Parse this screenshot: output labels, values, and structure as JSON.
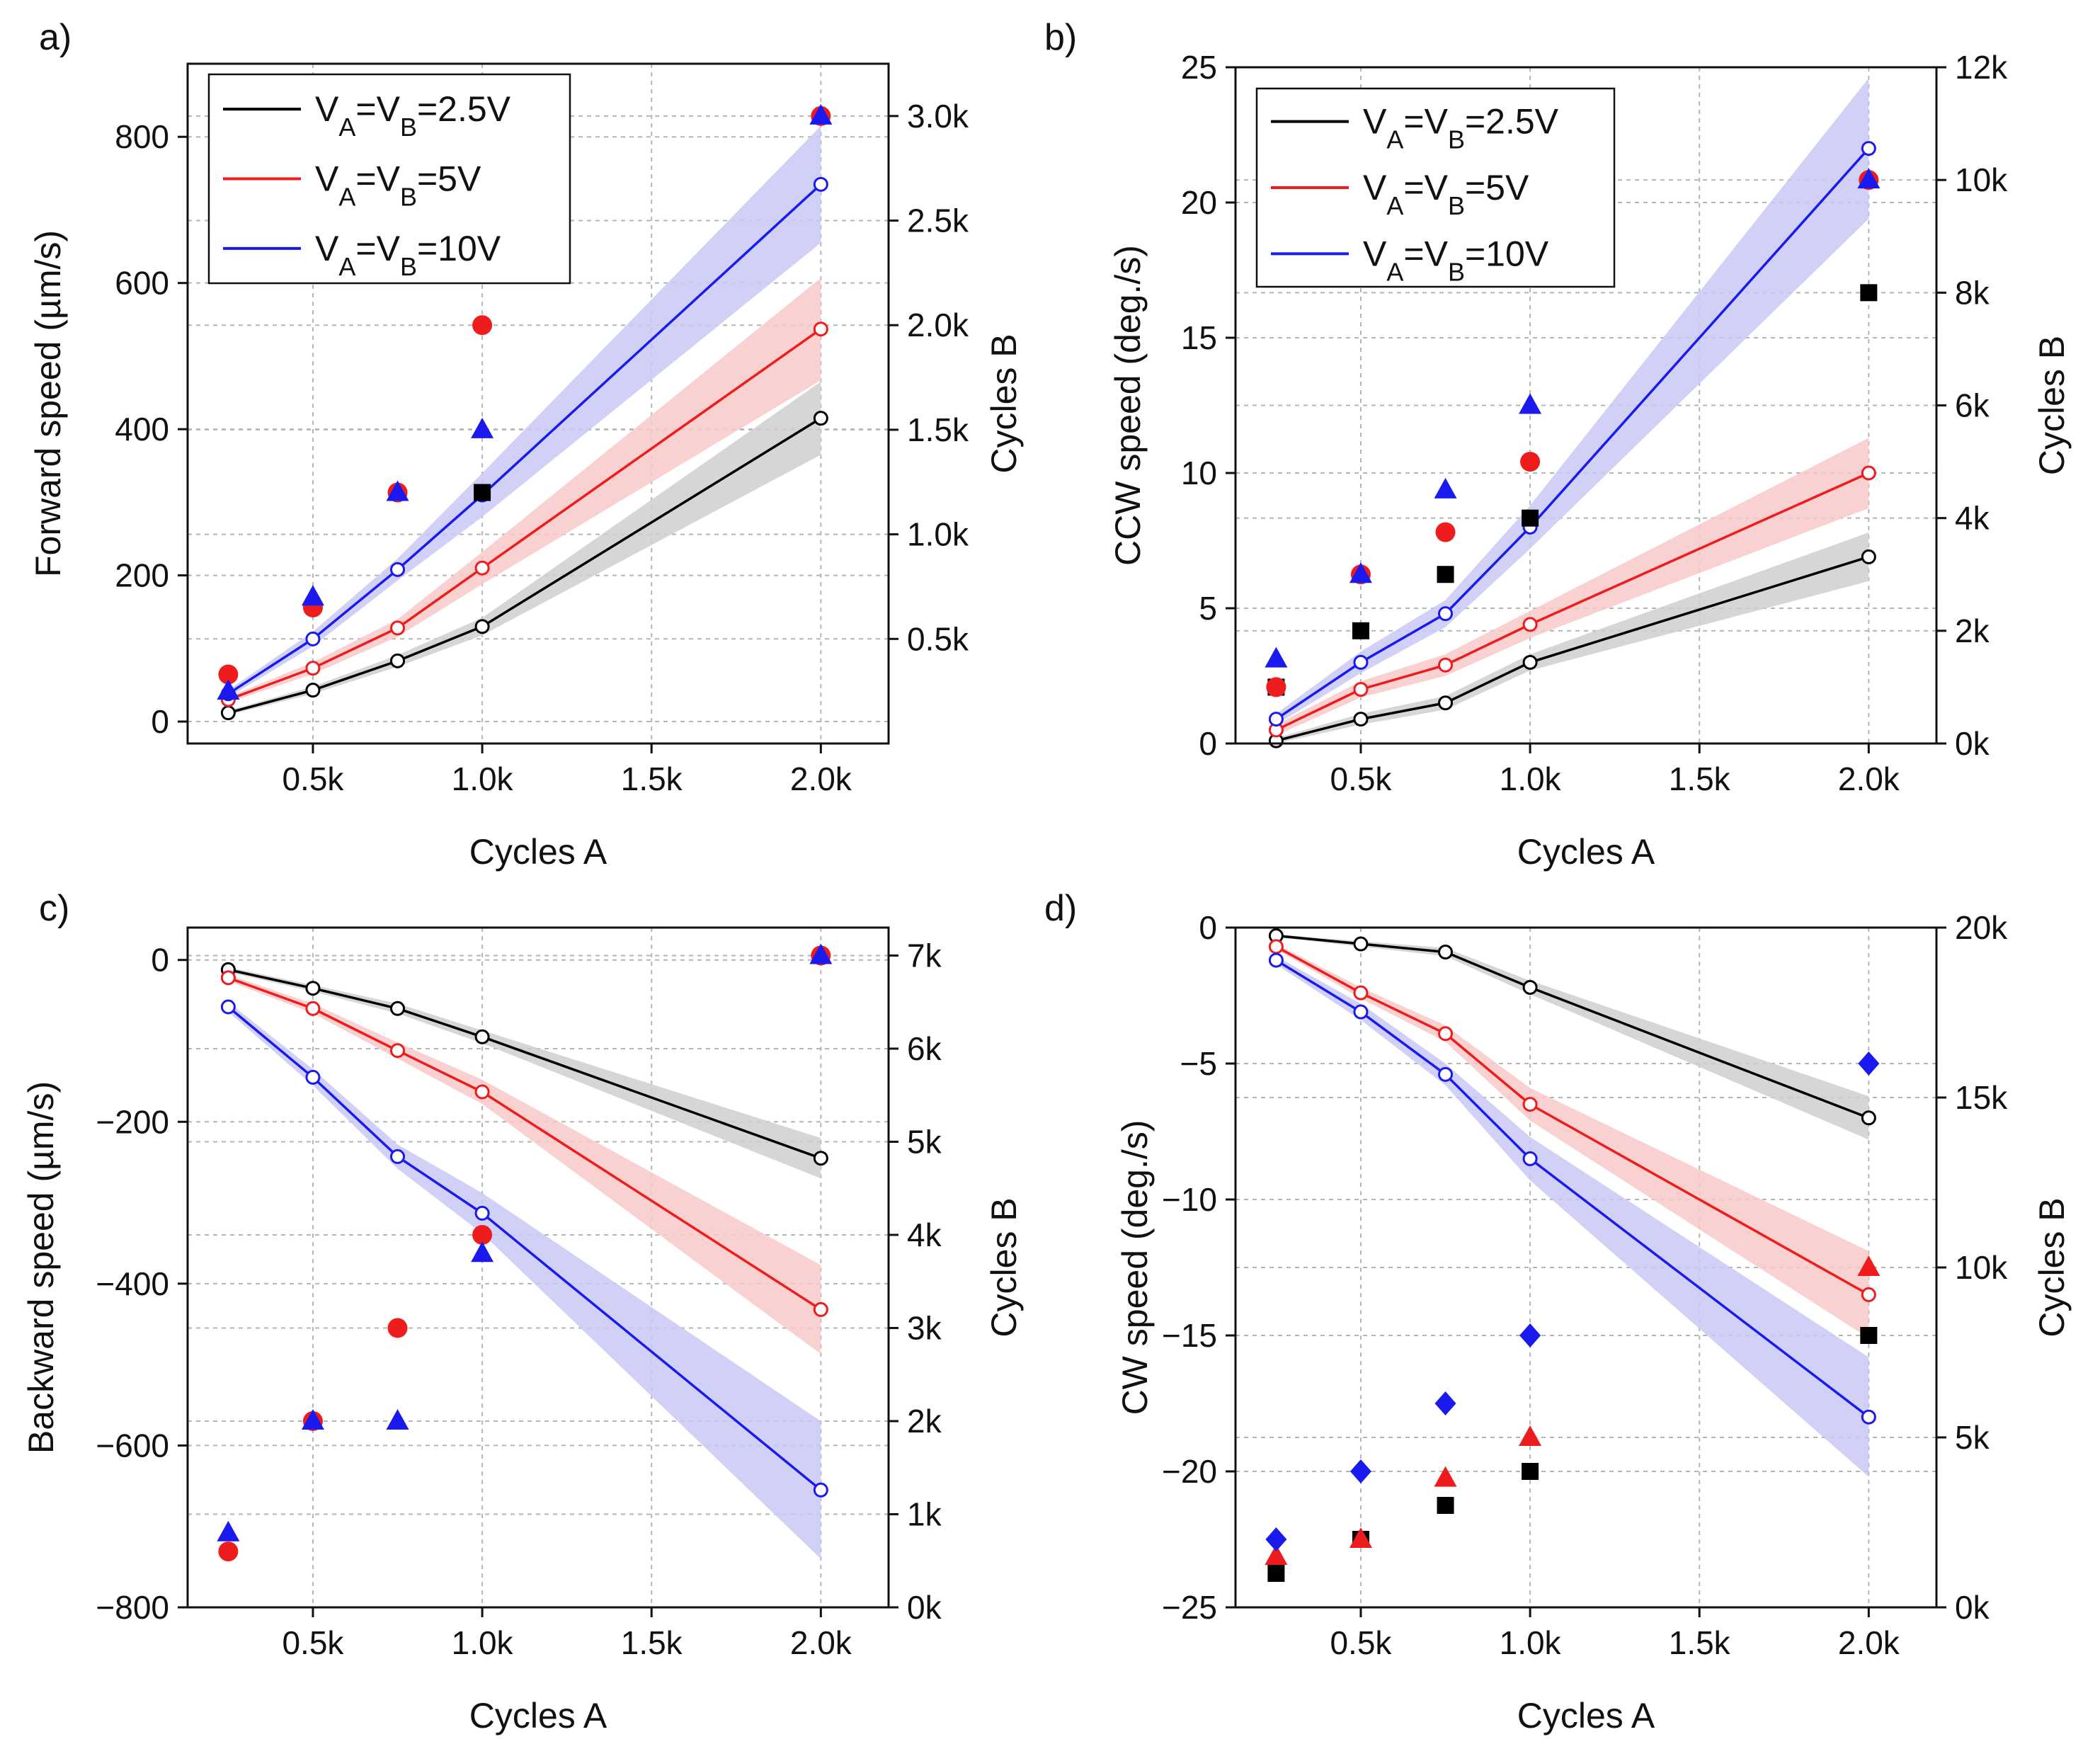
{
  "chart_data": [
    {
      "panel": "a)",
      "type": "line",
      "xlabel": "Cycles A",
      "ylabel": "Forward speed (µm/s)",
      "y2label": "Cycles B",
      "xlim": [
        130,
        2200
      ],
      "ylim": [
        -30,
        900
      ],
      "y2lim": [
        0,
        3250
      ],
      "xticks": [
        500,
        1000,
        1500,
        2000
      ],
      "xticklabels": [
        "0.5k",
        "1.0k",
        "1.5k",
        "2.0k"
      ],
      "yticks": [
        0,
        200,
        400,
        600,
        800
      ],
      "yticklabels": [
        "0",
        "200",
        "400",
        "600",
        "800"
      ],
      "y2ticks": [
        500,
        1000,
        1500,
        2000,
        2500,
        3000
      ],
      "y2ticklabels": [
        "0.5k",
        "1.0k",
        "1.5k",
        "2.0k",
        "2.5k",
        "3.0k"
      ],
      "legend": [
        "V_A=V_B=2.5V",
        "V_A=V_B=5V",
        "V_A=V_B=10V"
      ],
      "x": [
        250,
        500,
        750,
        1000,
        2000
      ],
      "series": [
        {
          "name": "2.5V",
          "color": "#000000",
          "band": "#cfcfcf",
          "values": [
            12,
            43,
            83,
            130,
            415
          ],
          "band_half": [
            3,
            5,
            8,
            12,
            50
          ]
        },
        {
          "name": "5V",
          "color": "#ee1c1c",
          "band": "#f8c9c9",
          "values": [
            30,
            73,
            128,
            210,
            537
          ],
          "band_half": [
            4,
            8,
            12,
            22,
            70
          ]
        },
        {
          "name": "10V",
          "color": "#1a1aee",
          "band": "#c9c9f6",
          "values": [
            38,
            113,
            208,
            310,
            735
          ],
          "band_half": [
            5,
            10,
            15,
            30,
            80
          ]
        }
      ],
      "markers": [
        {
          "series": "5V",
          "shape": "circle",
          "color": "#ee1c1c",
          "x": [
            250,
            500,
            750,
            1000,
            2000
          ],
          "y2": [
            330,
            650,
            1200,
            2000,
            3000
          ]
        },
        {
          "series": "10V",
          "shape": "triangle",
          "color": "#1a1aee",
          "x": [
            250,
            500,
            750,
            1000,
            2000
          ],
          "y2": [
            250,
            700,
            1200,
            1500,
            3000
          ]
        },
        {
          "series": "2.5V",
          "shape": "square",
          "color": "#000000",
          "x": [
            1000
          ],
          "y2": [
            1200
          ]
        }
      ]
    },
    {
      "panel": "b)",
      "type": "line",
      "xlabel": "Cycles A",
      "ylabel": "CCW speed (deg./s)",
      "y2label": "Cycles B",
      "xlim": [
        130,
        2200
      ],
      "ylim": [
        0,
        25
      ],
      "y2lim": [
        0,
        12000
      ],
      "xticks": [
        500,
        1000,
        1500,
        2000
      ],
      "xticklabels": [
        "0.5k",
        "1.0k",
        "1.5k",
        "2.0k"
      ],
      "yticks": [
        0,
        5,
        10,
        15,
        20,
        25
      ],
      "yticklabels": [
        "0",
        "5",
        "10",
        "15",
        "20",
        "25"
      ],
      "y2ticks": [
        0,
        2000,
        4000,
        6000,
        8000,
        10000,
        12000
      ],
      "y2ticklabels": [
        "0k",
        "2k",
        "4k",
        "6k",
        "8k",
        "10k",
        "12k"
      ],
      "legend": [
        "V_A=V_B=2.5V",
        "V_A=V_B=5V",
        "V_A=V_B=10V"
      ],
      "x": [
        250,
        500,
        750,
        1000,
        2000
      ],
      "series": [
        {
          "name": "2.5V",
          "color": "#000000",
          "band": "#cfcfcf",
          "values": [
            0.1,
            0.9,
            1.5,
            3.0,
            6.9
          ],
          "band_half": [
            0.1,
            0.2,
            0.25,
            0.3,
            0.9
          ]
        },
        {
          "name": "5V",
          "color": "#ee1c1c",
          "band": "#f8c9c9",
          "values": [
            0.5,
            2.0,
            2.9,
            4.4,
            10.0
          ],
          "band_half": [
            0.2,
            0.3,
            0.4,
            0.5,
            1.3
          ]
        },
        {
          "name": "10V",
          "color": "#1a1aee",
          "band": "#c9c9f6",
          "values": [
            0.9,
            3.0,
            4.8,
            8.0,
            22.0
          ],
          "band_half": [
            0.2,
            0.4,
            0.5,
            0.8,
            2.6
          ]
        }
      ],
      "markers": [
        {
          "series": "2.5V",
          "shape": "square",
          "color": "#000000",
          "x": [
            250,
            500,
            750,
            1000,
            2000
          ],
          "y2": [
            1000,
            2000,
            3000,
            4000,
            8000
          ]
        },
        {
          "series": "5V",
          "shape": "circle",
          "color": "#ee1c1c",
          "x": [
            250,
            500,
            750,
            1000,
            2000
          ],
          "y2": [
            1000,
            3000,
            3750,
            5000,
            10000
          ]
        },
        {
          "series": "10V",
          "shape": "triangle",
          "color": "#1a1aee",
          "x": [
            250,
            500,
            750,
            1000,
            2000
          ],
          "y2": [
            1500,
            3000,
            4500,
            6000,
            10000
          ]
        }
      ]
    },
    {
      "panel": "c)",
      "type": "line",
      "xlabel": "Cycles A",
      "ylabel": "Backward speed (µm/s)",
      "y2label": "Cycles B",
      "xlim": [
        130,
        2200
      ],
      "ylim": [
        -800,
        40
      ],
      "y2lim": [
        0,
        7300
      ],
      "xticks": [
        500,
        1000,
        1500,
        2000
      ],
      "xticklabels": [
        "0.5k",
        "1.0k",
        "1.5k",
        "2.0k"
      ],
      "yticks": [
        0,
        -200,
        -400,
        -600,
        -800
      ],
      "yticklabels": [
        "0",
        "−200",
        "−400",
        "−600",
        "−800"
      ],
      "y2ticks": [
        0,
        1000,
        2000,
        3000,
        4000,
        5000,
        6000,
        7000
      ],
      "y2ticklabels": [
        "0k",
        "1k",
        "2k",
        "3k",
        "4k",
        "5k",
        "6k",
        "7k"
      ],
      "x": [
        250,
        500,
        750,
        1000,
        2000
      ],
      "series": [
        {
          "name": "2.5V",
          "color": "#000000",
          "band": "#cfcfcf",
          "values": [
            -12,
            -35,
            -60,
            -95,
            -245
          ],
          "band_half": [
            3,
            4,
            6,
            8,
            25
          ]
        },
        {
          "name": "5V",
          "color": "#ee1c1c",
          "band": "#f8c9c9",
          "values": [
            -22,
            -60,
            -112,
            -163,
            -432
          ],
          "band_half": [
            4,
            6,
            10,
            15,
            55
          ]
        },
        {
          "name": "10V",
          "color": "#1a1aee",
          "band": "#c9c9f6",
          "values": [
            -58,
            -145,
            -243,
            -313,
            -655
          ],
          "band_half": [
            6,
            10,
            15,
            25,
            85
          ]
        }
      ],
      "markers": [
        {
          "series": "5V",
          "shape": "circle",
          "color": "#ee1c1c",
          "x": [
            250,
            500,
            750,
            1000,
            2000
          ],
          "y2": [
            600,
            2000,
            3000,
            4000,
            7000
          ]
        },
        {
          "series": "10V",
          "shape": "triangle",
          "color": "#1a1aee",
          "x": [
            250,
            500,
            750,
            1000,
            2000
          ],
          "y2": [
            800,
            2000,
            2000,
            3800,
            7000
          ]
        }
      ]
    },
    {
      "panel": "d)",
      "type": "line",
      "xlabel": "Cycles A",
      "ylabel": "CW speed (deg./s)",
      "y2label": "Cycles B",
      "xlim": [
        130,
        2200
      ],
      "ylim": [
        -25,
        0
      ],
      "y2lim": [
        0,
        20000
      ],
      "xticks": [
        500,
        1000,
        1500,
        2000
      ],
      "xticklabels": [
        "0.5k",
        "1.0k",
        "1.5k",
        "2.0k"
      ],
      "yticks": [
        0,
        -5,
        -10,
        -15,
        -20,
        -25
      ],
      "yticklabels": [
        "0",
        "−5",
        "−10",
        "−15",
        "−20",
        "−25"
      ],
      "y2ticks": [
        0,
        5000,
        10000,
        15000,
        20000
      ],
      "y2ticklabels": [
        "0k",
        "5k",
        "10k",
        "15k",
        "20k"
      ],
      "x": [
        250,
        500,
        750,
        1000,
        2000
      ],
      "series": [
        {
          "name": "2.5V",
          "color": "#000000",
          "band": "#cfcfcf",
          "values": [
            -0.3,
            -0.6,
            -0.9,
            -2.2,
            -7.0
          ],
          "band_half": [
            0.05,
            0.1,
            0.15,
            0.25,
            0.8
          ]
        },
        {
          "name": "5V",
          "color": "#ee1c1c",
          "band": "#f8c9c9",
          "values": [
            -0.7,
            -2.4,
            -3.9,
            -6.5,
            -13.5
          ],
          "band_half": [
            0.1,
            0.2,
            0.3,
            0.6,
            1.6
          ]
        },
        {
          "name": "10V",
          "color": "#1a1aee",
          "band": "#c9c9f6",
          "values": [
            -1.2,
            -3.1,
            -5.4,
            -8.5,
            -18.0
          ],
          "band_half": [
            0.15,
            0.3,
            0.4,
            0.8,
            2.2
          ]
        }
      ],
      "markers": [
        {
          "series": "2.5V",
          "shape": "square",
          "color": "#000000",
          "x": [
            250,
            500,
            750,
            1000,
            2000
          ],
          "y2": [
            1000,
            2000,
            3000,
            4000,
            8000
          ]
        },
        {
          "series": "5V",
          "shape": "triangle",
          "color": "#ee1c1c",
          "x": [
            250,
            500,
            750,
            1000,
            2000
          ],
          "y2": [
            1500,
            2000,
            3800,
            5000,
            10000
          ]
        },
        {
          "series": "10V",
          "shape": "diamond",
          "color": "#1a1aee",
          "x": [
            250,
            500,
            750,
            1000,
            2000
          ],
          "y2": [
            2000,
            4000,
            6000,
            8000,
            16000
          ]
        }
      ]
    }
  ]
}
